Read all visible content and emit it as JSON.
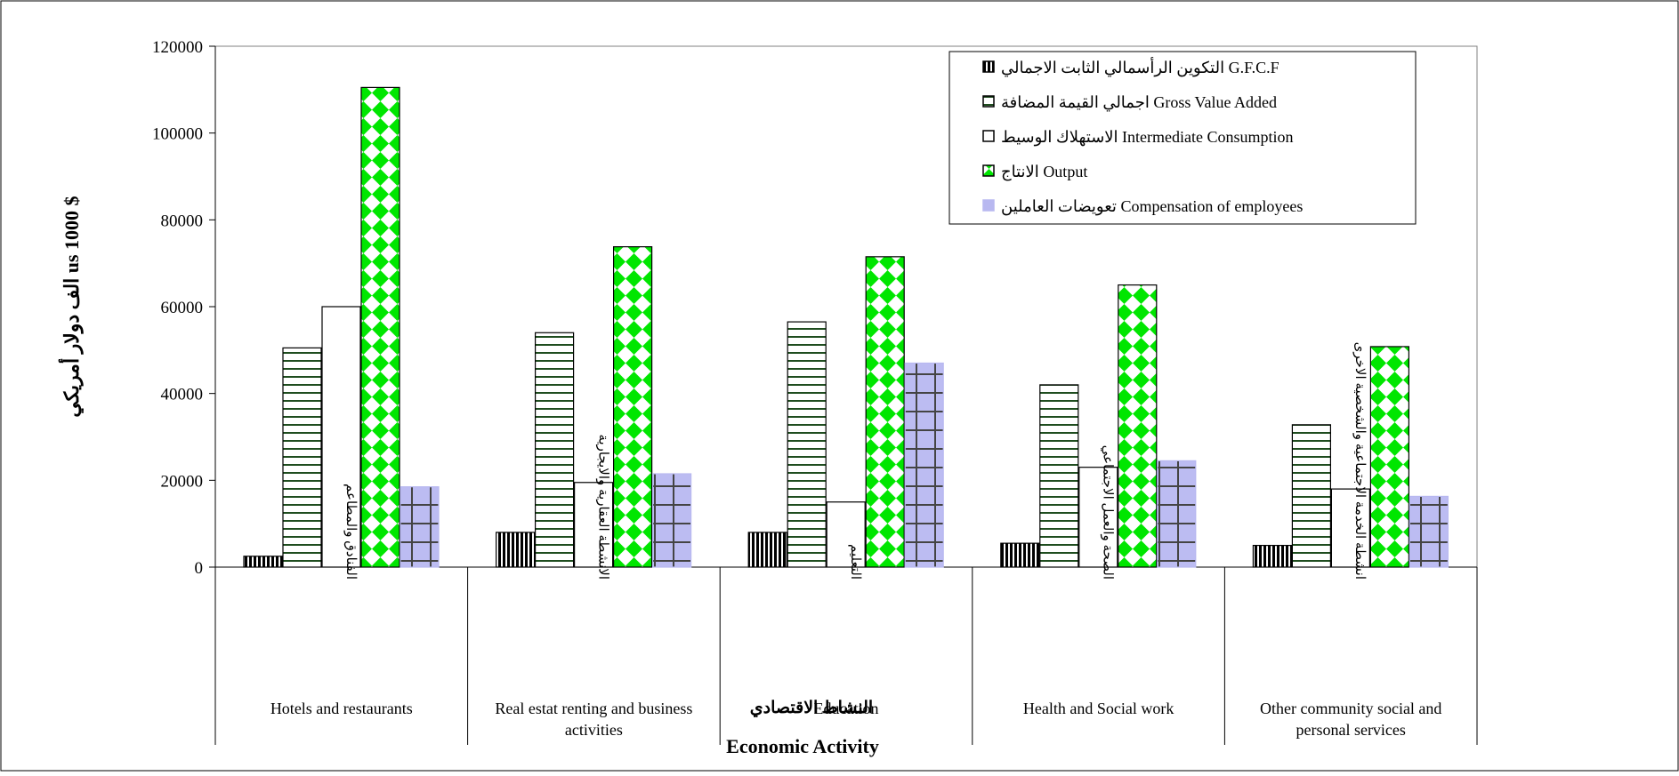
{
  "chart_data": {
    "type": "bar",
    "categories_en": [
      "Hotels and restaurants",
      "Real estat renting and business activities",
      "Education",
      "Health and Social work",
      "Other community social and personal services"
    ],
    "categories_ar": [
      "الفنادق والمطاعم",
      "الانشطة العقارية والايجارية",
      "التعليم",
      "الصحة والعمل الاجتماعي",
      "انشطة الخدمة الاجتماعية والشخصية الاخرى"
    ],
    "series": [
      {
        "name": "التكوين الرأسمالي الثابت الاجمالي G.F.C.F",
        "pattern": "vertical-lines",
        "color": "#000000",
        "values": [
          2500,
          8000,
          8000,
          5500,
          5000
        ]
      },
      {
        "name": "اجمالي القيمة المضافة Gross Value Added",
        "pattern": "horizontal-lines",
        "color": "#1f4d1f",
        "values": [
          50500,
          54000,
          56500,
          42000,
          32800
        ]
      },
      {
        "name": "الاستهلاك الوسيط Intermediate Consumption",
        "pattern": "none",
        "color": "#000000",
        "values": [
          60000,
          19500,
          15000,
          23000,
          18000
        ]
      },
      {
        "name": "الانتاج Output",
        "pattern": "green-diamonds",
        "color": "#00e000",
        "values": [
          110500,
          73800,
          71500,
          65000,
          50800
        ]
      },
      {
        "name": "تعويضات العاملين Compensation of employees",
        "pattern": "lavender-grid",
        "color": "#b8b8f0",
        "values": [
          18500,
          21500,
          47000,
          24500,
          16300
        ]
      }
    ],
    "ylim": [
      0,
      120000
    ],
    "yticks": [
      "0",
      "20000",
      "40000",
      "60000",
      "80000",
      "100000",
      "120000"
    ],
    "ylabel": "الف دولار أمريكي us 1000 $",
    "xlabel_en": "Economic Activity",
    "xlabel_ar": "النشاط الاقتصادي",
    "legend_position": "top-right",
    "grid": false
  },
  "legend": {
    "items": [
      {
        "label": "التكوين الرأسمالي الثابت الاجمالي G.F.C.F",
        "swatch": "vertical-lines"
      },
      {
        "label": "اجمالي القيمة المضافة Gross Value Added",
        "swatch": "horizontal-lines"
      },
      {
        "label": "الاستهلاك الوسيط Intermediate Consumption",
        "swatch": "none"
      },
      {
        "label": "الانتاج Output",
        "swatch": "green-diamonds"
      },
      {
        "label": "تعويضات العاملين Compensation of employees",
        "swatch": "lavender-grid"
      }
    ]
  }
}
